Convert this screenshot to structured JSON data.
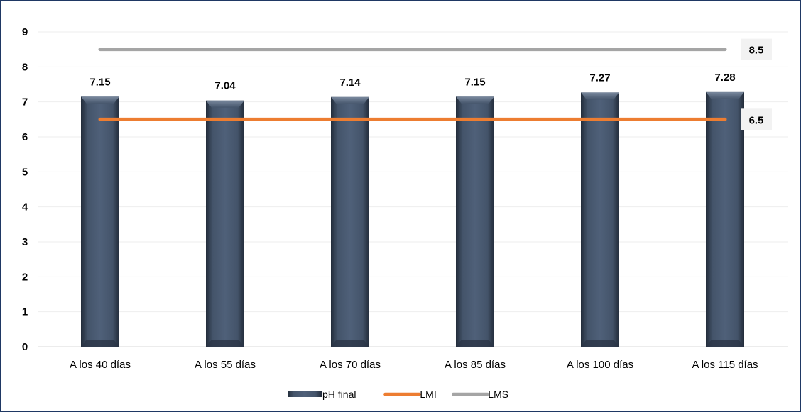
{
  "chart_data": {
    "type": "bar",
    "title": "",
    "xlabel": "",
    "ylabel": "",
    "ylim": [
      0,
      9
    ],
    "yticks": [
      0,
      1,
      2,
      3,
      4,
      5,
      6,
      7,
      8,
      9
    ],
    "grid": true,
    "legend_position": "bottom",
    "categories": [
      "A los 40 días",
      "A los 55 días",
      "A los 70 días",
      "A los 85 días",
      "A los 100 días",
      "A los 115 días"
    ],
    "series": [
      {
        "name": "pH final",
        "kind": "bar",
        "color": "#44546a",
        "values": [
          7.15,
          7.04,
          7.14,
          7.15,
          7.27,
          7.28
        ],
        "data_labels": [
          "7.15",
          "7.04",
          "7.14",
          "7.15",
          "7.27",
          "7.28"
        ]
      },
      {
        "name": "LMI",
        "kind": "line",
        "color": "#ed7d31",
        "values": [
          6.5,
          6.5,
          6.5,
          6.5,
          6.5,
          6.5
        ],
        "end_label": "6.5"
      },
      {
        "name": "LMS",
        "kind": "line",
        "color": "#a5a5a5",
        "values": [
          8.5,
          8.5,
          8.5,
          8.5,
          8.5,
          8.5
        ],
        "end_label": "8.5"
      }
    ]
  }
}
